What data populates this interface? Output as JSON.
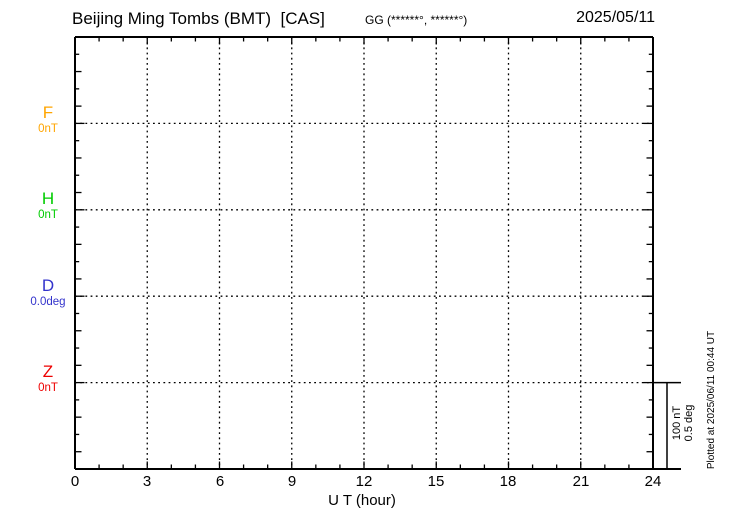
{
  "header": {
    "station_title": "Beijing Ming Tombs (BMT)  [CAS]",
    "coordinates": "GG (******°, ******°)",
    "date": "2025/05/11"
  },
  "chart_data": {
    "type": "line",
    "title": "Beijing Ming Tombs (BMT) [CAS] 2025/05/11 magnetogram",
    "xlabel": "U T (hour)",
    "xlim": [
      0,
      24
    ],
    "x_tick_labels": [
      "0",
      "3",
      "6",
      "9",
      "12",
      "15",
      "18",
      "21",
      "24"
    ],
    "x_minor_tick_step_hours": 1,
    "x_major_tick_step_hours": 3,
    "grid": "dotted vertical lines every 3 hours; dotted horizontal zero-baseline per channel; minor y ticks every 20 nT",
    "legend_position": "left margin, one colored label per channel",
    "series": [
      {
        "name": "F",
        "baseline_value_label": "0nT",
        "color": "#FFA500",
        "values": []
      },
      {
        "name": "H",
        "baseline_value_label": "0nT",
        "color": "#00CC00",
        "values": []
      },
      {
        "name": "D",
        "baseline_value_label": "0.0deg",
        "color": "#3333CC",
        "values": []
      },
      {
        "name": "Z",
        "baseline_value_label": "0nT",
        "color": "#EE0000",
        "values": []
      }
    ],
    "scale_bar": {
      "labels": [
        "100 nT",
        "0.5 deg"
      ],
      "span": "Z baseline to bottom axis"
    },
    "data_note": "no data traces plotted (empty magnetogram, baselines only)"
  },
  "footer": {
    "plotted_at": "Plotted at 2025/06/11 00:44 UT"
  }
}
